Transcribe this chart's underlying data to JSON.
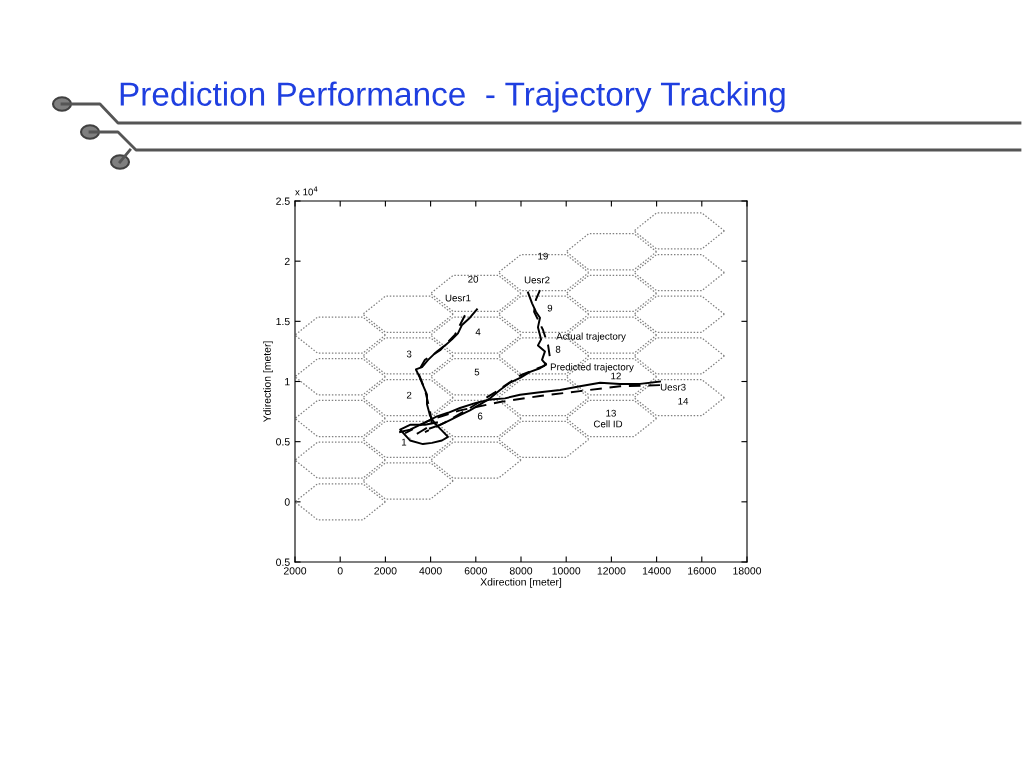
{
  "chart_data": {
    "type": "line",
    "title": "Prediction Performance  - Trajectory Tracking",
    "xlabel": "Xdirection [meter]",
    "ylabel": "Ydirection [meter]",
    "xlim": [
      -2000,
      18000
    ],
    "ylim": [
      -0.5,
      2.5
    ],
    "xticks": [
      {
        "value": -2000,
        "label": "2000"
      },
      0,
      2000,
      4000,
      6000,
      8000,
      10000,
      12000,
      14000,
      16000,
      18000
    ],
    "yticks": [
      {
        "value": -0.5,
        "label": "0.5"
      },
      0,
      0.5,
      1,
      1.5,
      2,
      2.5
    ],
    "series": [
      {
        "color": "#000000",
        "line_style": "solid",
        "x": [
          6050,
          5740,
          5390,
          5210,
          4950,
          4640,
          4280,
          3890,
          3620,
          3350,
          3530,
          3660,
          3840,
          3840,
          3970,
          4150,
          4770,
          4500,
          4060,
          3660,
          3090,
          2650,
          3090,
          3750,
          4280
        ],
        "values": [
          1.6,
          1.53,
          1.47,
          1.4,
          1.35,
          1.3,
          1.25,
          1.18,
          1.12,
          1.1,
          1.03,
          0.97,
          0.89,
          0.81,
          0.72,
          0.66,
          0.54,
          0.51,
          0.49,
          0.48,
          0.51,
          0.6,
          0.64,
          0.64,
          0.66
        ]
      },
      {
        "color": "#000000",
        "line_style": "dashed",
        "x": [
          5520,
          5080,
          4420,
          3750,
          3440,
          3750,
          3970,
          4060,
          3530,
          3090
        ],
        "values": [
          1.55,
          1.39,
          1.26,
          1.18,
          1.08,
          0.93,
          0.76,
          0.64,
          0.58,
          0.53
        ]
      },
      {
        "color": "#000000",
        "line_style": "solid",
        "x": [
          8310,
          8490,
          8660,
          8840,
          8750,
          8890,
          8750,
          9060,
          8930,
          9110,
          8840,
          8400,
          7960,
          7510,
          7070,
          6630,
          6190,
          5740,
          5300,
          4860,
          4420,
          3970
        ],
        "values": [
          1.74,
          1.65,
          1.58,
          1.53,
          1.45,
          1.35,
          1.3,
          1.25,
          1.18,
          1.14,
          1.11,
          1.08,
          1.03,
          0.99,
          0.93,
          0.86,
          0.81,
          0.76,
          0.72,
          0.68,
          0.64,
          0.61
        ]
      },
      {
        "color": "#000000",
        "line_style": "dashed",
        "x": [
          8840,
          8660,
          8580,
          8970,
          9200,
          9280,
          9020,
          7960,
          6850,
          5740,
          4640,
          3750
        ],
        "values": [
          1.76,
          1.68,
          1.58,
          1.43,
          1.3,
          1.2,
          1.13,
          1.05,
          0.91,
          0.78,
          0.66,
          0.58
        ]
      },
      {
        "color": "#000000",
        "line_style": "solid",
        "x": [
          14150,
          13270,
          12380,
          11500,
          10610,
          9730,
          8840,
          7960,
          7290,
          6630,
          5970,
          5300,
          4770,
          4280,
          3970,
          3530,
          3090,
          2650
        ],
        "values": [
          1.0,
          0.98,
          0.98,
          0.99,
          0.96,
          0.93,
          0.91,
          0.89,
          0.86,
          0.85,
          0.82,
          0.78,
          0.74,
          0.71,
          0.68,
          0.64,
          0.6,
          0.58
        ]
      },
      {
        "color": "#000000",
        "line_style": "dashed",
        "x": [
          14150,
          12380,
          10610,
          8840,
          7070,
          5300,
          3970,
          2870
        ],
        "values": [
          0.97,
          0.96,
          0.92,
          0.88,
          0.83,
          0.76,
          0.68,
          0.57
        ]
      }
    ],
    "annotations": [
      "x 10$^{4}$",
      "20",
      "Uesr1",
      "19",
      "Uesr2",
      "9",
      "4",
      "3",
      "Actual trajectory",
      "8",
      "5",
      "Predicted trajectory",
      "12",
      "Uesr3",
      "2",
      "14",
      "6",
      "13",
      "Cell ID",
      "1"
    ]
  }
}
